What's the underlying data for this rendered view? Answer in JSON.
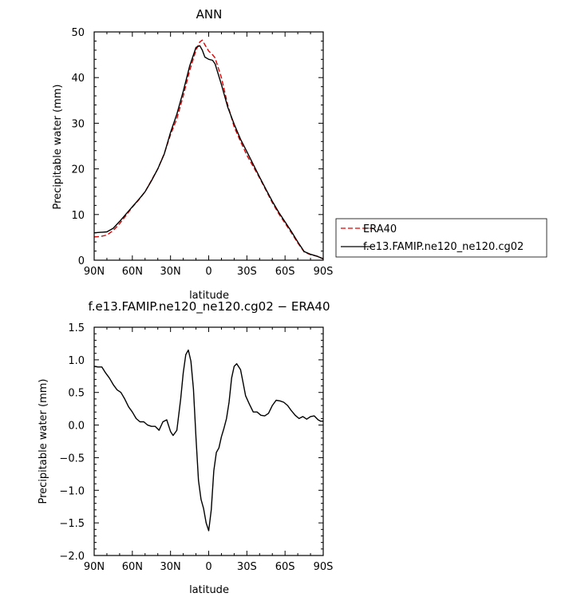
{
  "chart_data": [
    {
      "type": "line",
      "title": "ANN",
      "xlabel": "latitude",
      "ylabel": "Precipitable water (mm)",
      "xlim": [
        90,
        -90
      ],
      "ylim": [
        0,
        50
      ],
      "xticks": [
        90,
        60,
        30,
        0,
        -30,
        -60,
        -90
      ],
      "xticklabels": [
        "90N",
        "60N",
        "30N",
        "0",
        "30S",
        "60S",
        "90S"
      ],
      "yticks": [
        0,
        10,
        20,
        30,
        40,
        50
      ],
      "yticklabels": [
        "0",
        "10",
        "20",
        "30",
        "40",
        "50"
      ],
      "legend_position": "right",
      "series": [
        {
          "name": "ERA40",
          "color": "#e00000",
          "dash": "dashed",
          "x": [
            90,
            85,
            80,
            75,
            70,
            65,
            60,
            55,
            50,
            45,
            40,
            35,
            30,
            25,
            20,
            15,
            10,
            7,
            5,
            3,
            0,
            -3,
            -5,
            -10,
            -15,
            -20,
            -25,
            -30,
            -35,
            -40,
            -45,
            -50,
            -55,
            -60,
            -65,
            -70,
            -75,
            -80,
            -85,
            -90
          ],
          "y": [
            5.1,
            5.2,
            5.5,
            6.5,
            8.0,
            9.8,
            11.6,
            13.2,
            15.0,
            17.5,
            20.0,
            23.3,
            27.5,
            31.0,
            36.0,
            41.5,
            46.0,
            47.8,
            48.2,
            47.2,
            45.8,
            45.0,
            44.3,
            40.0,
            34.0,
            29.2,
            26.0,
            23.0,
            20.5,
            18.0,
            15.3,
            12.6,
            10.2,
            8.1,
            6.0,
            3.8,
            1.8,
            1.2,
            0.9,
            0.3
          ]
        },
        {
          "name": "f.e13.FAMIP.ne120_ne120.cg02",
          "color": "#000000",
          "dash": "solid",
          "x": [
            90,
            85,
            80,
            75,
            70,
            65,
            60,
            55,
            50,
            45,
            40,
            35,
            30,
            25,
            20,
            15,
            10,
            7,
            5,
            3,
            0,
            -3,
            -5,
            -10,
            -15,
            -20,
            -25,
            -30,
            -35,
            -40,
            -45,
            -50,
            -55,
            -60,
            -65,
            -70,
            -75,
            -80,
            -85,
            -90
          ],
          "y": [
            6.0,
            6.1,
            6.2,
            7.0,
            8.5,
            10.1,
            11.7,
            13.3,
            15.0,
            17.4,
            20.0,
            23.2,
            28.0,
            32.0,
            37.0,
            42.5,
            46.6,
            47.0,
            46.0,
            44.5,
            44.0,
            43.8,
            43.0,
            38.5,
            33.5,
            29.8,
            26.5,
            23.8,
            21.0,
            18.2,
            15.5,
            12.9,
            10.5,
            8.4,
            6.3,
            4.0,
            1.9,
            1.3,
            0.9,
            0.3
          ]
        }
      ]
    },
    {
      "type": "line",
      "title": "f.e13.FAMIP.ne120_ne120.cg02 − ERA40",
      "xlabel": "latitude",
      "ylabel": "Precipitable water (mm)",
      "xlim": [
        90,
        -90
      ],
      "ylim": [
        -2.0,
        1.5
      ],
      "xticks": [
        90,
        60,
        30,
        0,
        -30,
        -60,
        -90
      ],
      "xticklabels": [
        "90N",
        "60N",
        "30N",
        "0",
        "30S",
        "60S",
        "90S"
      ],
      "yticks": [
        -2.0,
        -1.5,
        -1.0,
        -0.5,
        0.0,
        0.5,
        1.0,
        1.5
      ],
      "yticklabels": [
        "−2.0",
        "−1.5",
        "−1.0",
        "−0.5",
        "0.0",
        "0.5",
        "1.0",
        "1.5"
      ],
      "series": [
        {
          "name": "",
          "color": "#000000",
          "dash": "solid",
          "x": [
            90,
            87,
            84,
            81,
            78,
            75,
            72,
            69,
            66,
            63,
            60,
            57,
            54,
            51,
            48,
            45,
            42,
            39,
            36,
            33,
            30,
            28,
            25,
            22,
            20,
            18,
            16,
            14,
            12,
            10,
            8,
            6,
            4,
            2,
            0,
            -2,
            -4,
            -6,
            -8,
            -10,
            -12,
            -14,
            -16,
            -18,
            -20,
            -22,
            -25,
            -27,
            -29,
            -32,
            -35,
            -38,
            -41,
            -44,
            -47,
            -50,
            -53,
            -56,
            -59,
            -62,
            -65,
            -68,
            -71,
            -74,
            -77,
            -80,
            -83,
            -86,
            -88,
            -90
          ],
          "y": [
            0.9,
            0.89,
            0.89,
            0.8,
            0.72,
            0.62,
            0.54,
            0.5,
            0.4,
            0.28,
            0.2,
            0.1,
            0.05,
            0.05,
            0.0,
            -0.02,
            -0.02,
            -0.08,
            0.05,
            0.08,
            -0.1,
            -0.16,
            -0.08,
            0.4,
            0.8,
            1.08,
            1.15,
            0.98,
            0.55,
            -0.2,
            -0.85,
            -1.14,
            -1.28,
            -1.5,
            -1.62,
            -1.3,
            -0.7,
            -0.42,
            -0.35,
            -0.18,
            -0.05,
            0.1,
            0.35,
            0.72,
            0.9,
            0.94,
            0.85,
            0.65,
            0.45,
            0.32,
            0.2,
            0.2,
            0.15,
            0.14,
            0.18,
            0.3,
            0.38,
            0.37,
            0.35,
            0.3,
            0.22,
            0.15,
            0.1,
            0.13,
            0.09,
            0.13,
            0.14,
            0.08,
            0.06,
            0.06
          ]
        }
      ]
    }
  ]
}
